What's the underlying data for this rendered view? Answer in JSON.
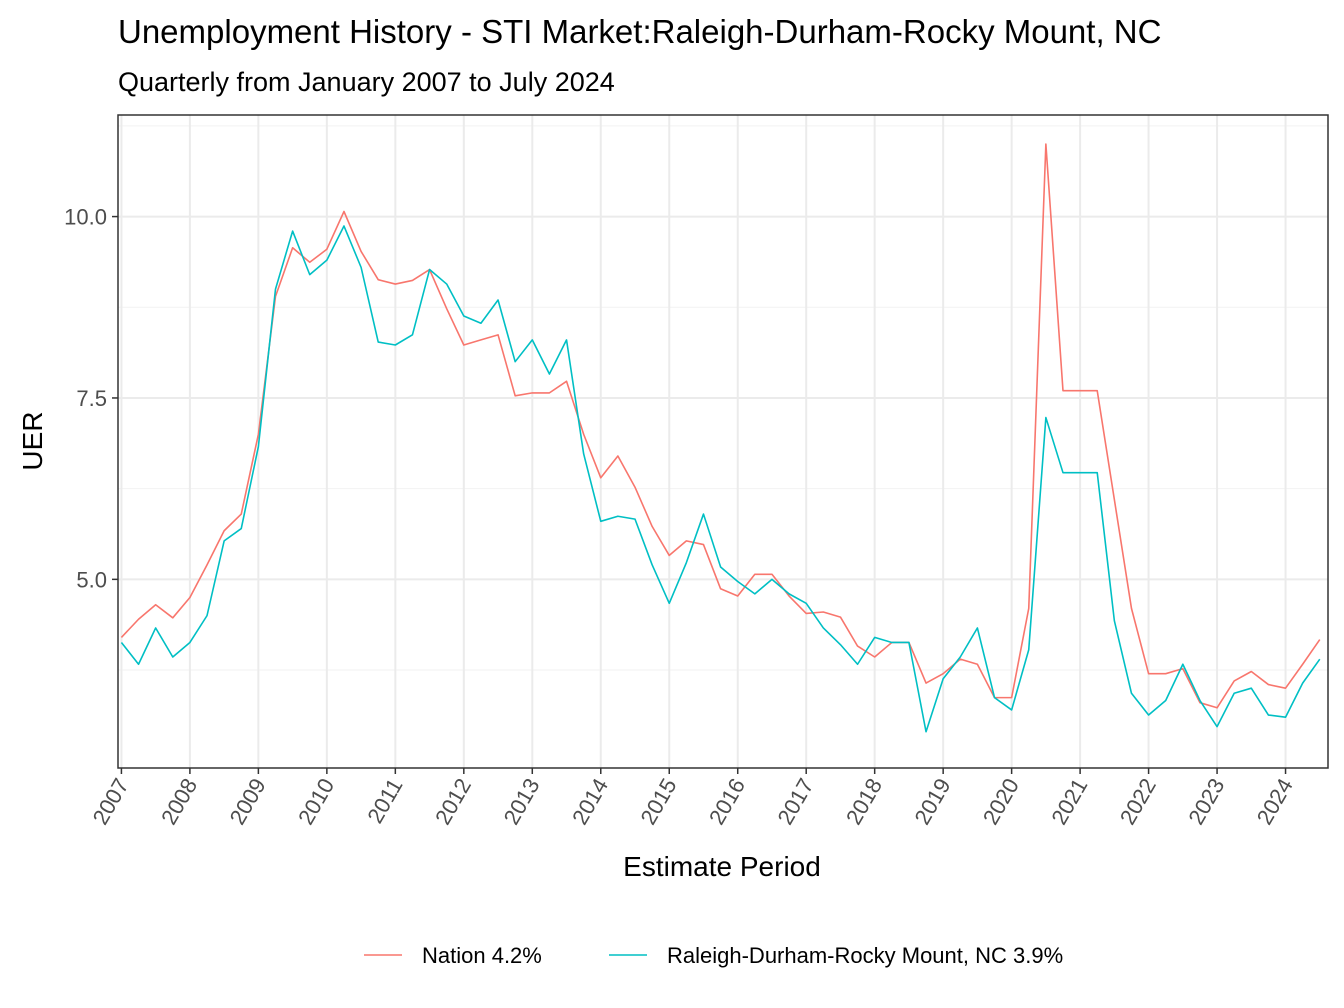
{
  "chart_data": {
    "type": "line",
    "title": "Unemployment History - STI Market:Raleigh-Durham-Rocky Mount, NC",
    "subtitle": "Quarterly from January 2007 to July 2024",
    "xlabel": "Estimate Period",
    "ylabel": "UER",
    "xlim": [
      2006.95,
      2024.62
    ],
    "ylim": [
      2.4,
      11.4
    ],
    "x_ticks": [
      2007,
      2008,
      2009,
      2010,
      2011,
      2012,
      2013,
      2014,
      2015,
      2016,
      2017,
      2018,
      2019,
      2020,
      2021,
      2022,
      2023,
      2024
    ],
    "x_tick_labels": [
      "2007",
      "2008",
      "2009",
      "2010",
      "2011",
      "2012",
      "2013",
      "2014",
      "2015",
      "2016",
      "2017",
      "2018",
      "2019",
      "2020",
      "2021",
      "2022",
      "2023",
      "2024"
    ],
    "y_ticks": [
      5.0,
      7.5,
      10.0
    ],
    "y_tick_labels": [
      "5.0",
      "7.5",
      "10.0"
    ],
    "grid": true,
    "legend_position": "bottom",
    "x_quarters": [
      2007.0,
      2007.25,
      2007.5,
      2007.75,
      2008.0,
      2008.25,
      2008.5,
      2008.75,
      2009.0,
      2009.25,
      2009.5,
      2009.75,
      2010.0,
      2010.25,
      2010.5,
      2010.75,
      2011.0,
      2011.25,
      2011.5,
      2011.75,
      2012.0,
      2012.25,
      2012.5,
      2012.75,
      2013.0,
      2013.25,
      2013.5,
      2013.75,
      2014.0,
      2014.25,
      2014.5,
      2014.75,
      2015.0,
      2015.25,
      2015.5,
      2015.75,
      2016.0,
      2016.25,
      2016.5,
      2016.75,
      2017.0,
      2017.25,
      2017.5,
      2017.75,
      2018.0,
      2018.25,
      2018.5,
      2018.75,
      2019.0,
      2019.25,
      2019.5,
      2019.75,
      2020.0,
      2020.25,
      2020.5,
      2020.75,
      2021.0,
      2021.25,
      2021.5,
      2021.75,
      2022.0,
      2022.25,
      2022.5,
      2022.75,
      2023.0,
      2023.25,
      2023.5,
      2023.75,
      2024.0,
      2024.25,
      2024.5
    ],
    "series": [
      {
        "name": "Nation 4.2%",
        "color": "#f8766d",
        "values": [
          4.2,
          4.45,
          4.65,
          4.47,
          4.75,
          5.2,
          5.67,
          5.9,
          7.0,
          8.9,
          9.57,
          9.37,
          9.55,
          10.07,
          9.52,
          9.13,
          9.07,
          9.12,
          9.27,
          8.73,
          8.23,
          8.3,
          8.37,
          7.53,
          7.57,
          7.57,
          7.73,
          7.0,
          6.4,
          6.7,
          6.27,
          5.73,
          5.33,
          5.53,
          5.48,
          4.87,
          4.77,
          5.07,
          5.07,
          4.77,
          4.53,
          4.55,
          4.48,
          4.08,
          3.93,
          4.13,
          4.13,
          3.57,
          3.7,
          3.9,
          3.83,
          3.37,
          3.37,
          4.6,
          11.0,
          7.6,
          7.6,
          7.6,
          6.1,
          4.6,
          3.7,
          3.7,
          3.77,
          3.3,
          3.23,
          3.6,
          3.73,
          3.55,
          3.5,
          3.83,
          4.17
        ]
      },
      {
        "name": "Raleigh-Durham-Rocky Mount, NC 3.9%",
        "color": "#00bfc4",
        "values": [
          4.13,
          3.83,
          4.33,
          3.93,
          4.13,
          4.5,
          5.53,
          5.7,
          6.83,
          9.0,
          9.8,
          9.2,
          9.4,
          9.87,
          9.3,
          8.27,
          8.23,
          8.37,
          9.27,
          9.07,
          8.63,
          8.53,
          8.85,
          8.0,
          8.3,
          7.83,
          8.3,
          6.73,
          5.8,
          5.87,
          5.83,
          5.2,
          4.67,
          5.23,
          5.9,
          5.17,
          4.97,
          4.8,
          5.0,
          4.8,
          4.67,
          4.33,
          4.1,
          3.83,
          4.2,
          4.13,
          4.13,
          2.9,
          3.63,
          3.93,
          4.33,
          3.37,
          3.2,
          4.03,
          7.23,
          6.47,
          6.47,
          6.47,
          4.43,
          3.43,
          3.13,
          3.33,
          3.83,
          3.33,
          2.97,
          3.43,
          3.5,
          3.13,
          3.1,
          3.57,
          3.9
        ]
      }
    ]
  }
}
